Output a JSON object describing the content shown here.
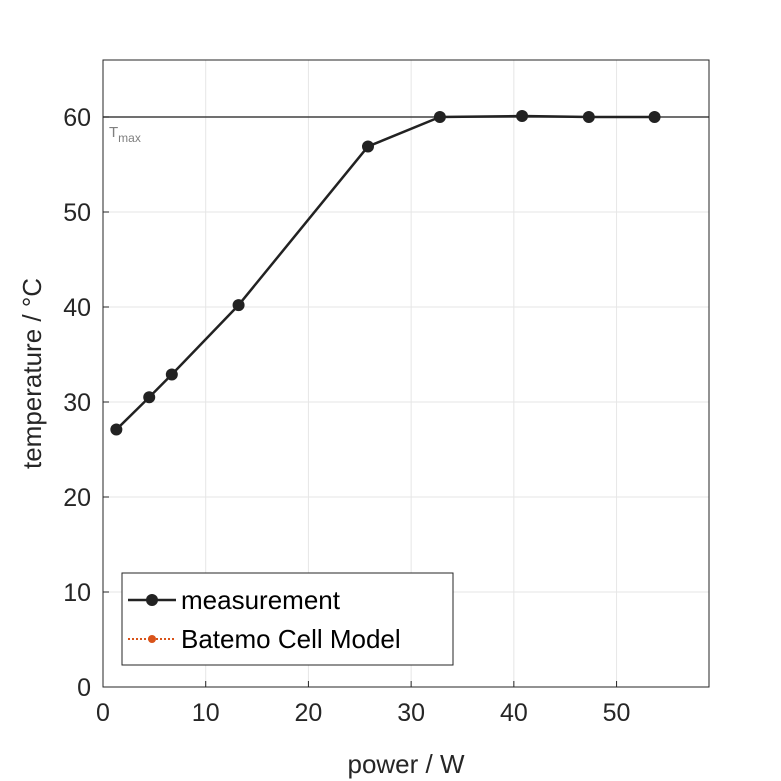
{
  "chart_data": {
    "type": "line",
    "xlabel": "power / W",
    "ylabel": "temperature / °C",
    "xlim": [
      0,
      59
    ],
    "ylim": [
      0,
      66
    ],
    "xticks": [
      0,
      10,
      20,
      30,
      40,
      50
    ],
    "yticks": [
      0,
      10,
      20,
      30,
      40,
      50,
      60
    ],
    "xtick_labels": [
      "0",
      "10",
      "20",
      "30",
      "40",
      "50"
    ],
    "ytick_labels": [
      "0",
      "10",
      "20",
      "30",
      "40",
      "50",
      "60"
    ],
    "grid": true,
    "legend_position": "bottom-left",
    "reference_line": {
      "y": 60,
      "label_main": "T",
      "label_sub": "max",
      "color": "#404040"
    },
    "series": [
      {
        "name": "measurement",
        "color": "#222222",
        "marker": "circle",
        "line_style": "solid",
        "points": [
          {
            "x": 1.3,
            "y": 27.1
          },
          {
            "x": 4.5,
            "y": 30.5
          },
          {
            "x": 6.7,
            "y": 32.9
          },
          {
            "x": 13.2,
            "y": 40.2
          },
          {
            "x": 25.8,
            "y": 56.9
          },
          {
            "x": 32.8,
            "y": 60.0
          },
          {
            "x": 40.8,
            "y": 60.1
          },
          {
            "x": 47.3,
            "y": 60.0
          },
          {
            "x": 53.7,
            "y": 60.0
          }
        ]
      },
      {
        "name": "Batemo Cell Model",
        "color": "#d95319",
        "marker": "circle",
        "line_style": "dotted",
        "points": []
      }
    ]
  }
}
